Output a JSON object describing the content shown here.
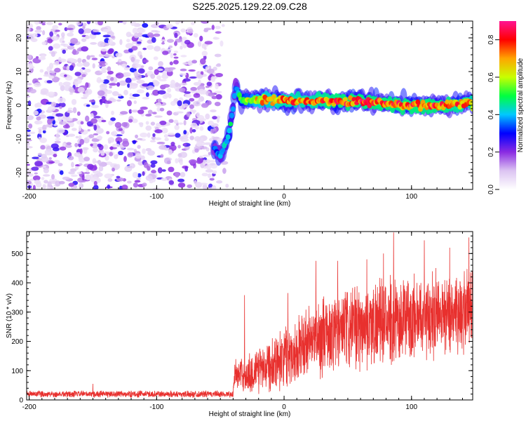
{
  "figure_title": "S225.2025.129.22.09.C28",
  "chart_data": [
    {
      "type": "heatmap",
      "xlabel": "Height of straight line (km)",
      "ylabel": "Frequency (Hz)",
      "xlim": [
        -202,
        148
      ],
      "ylim": [
        -25,
        25
      ],
      "xticks": [
        -200,
        -100,
        0,
        100
      ],
      "yticks": [
        -20,
        -10,
        0,
        10,
        20
      ],
      "colorbar": {
        "label": "Normalized spectral amplitude",
        "range": [
          0,
          0.9
        ],
        "ticks": [
          "0.0",
          "0.2",
          "0.4",
          "0.6",
          "0.8"
        ],
        "colormap": [
          "#ffffff",
          "#dcc4f2",
          "#8a2be2",
          "#0000ff",
          "#00c8ff",
          "#00ff40",
          "#c8ff00",
          "#ffa500",
          "#ff0000",
          "#ff1493"
        ]
      },
      "noise_region": {
        "x": [
          -202,
          -50
        ],
        "frequency": [
          -25,
          25
        ],
        "amplitude": [
          0.05,
          0.3
        ]
      },
      "signal_ridge": [
        {
          "x": -55,
          "frequency": -13,
          "amplitude": 0.35
        },
        {
          "x": -50,
          "frequency": -15,
          "amplitude": 0.4
        },
        {
          "x": -46,
          "frequency": -12,
          "amplitude": 0.45
        },
        {
          "x": -43,
          "frequency": -8,
          "amplitude": 0.5
        },
        {
          "x": -40,
          "frequency": 0,
          "amplitude": 0.45
        },
        {
          "x": -38,
          "frequency": 6,
          "amplitude": 0.35
        },
        {
          "x": -34,
          "frequency": 1,
          "amplitude": 0.55
        },
        {
          "x": -20,
          "frequency": 1.5,
          "amplitude": 0.75
        },
        {
          "x": 0,
          "frequency": 1.5,
          "amplitude": 0.8
        },
        {
          "x": 20,
          "frequency": 1.5,
          "amplitude": 0.8
        },
        {
          "x": 40,
          "frequency": 1,
          "amplitude": 0.85
        },
        {
          "x": 60,
          "frequency": 1,
          "amplitude": 0.85
        },
        {
          "x": 80,
          "frequency": 0.5,
          "amplitude": 0.85
        },
        {
          "x": 100,
          "frequency": 0,
          "amplitude": 0.85
        },
        {
          "x": 120,
          "frequency": 0,
          "amplitude": 0.85
        },
        {
          "x": 148,
          "frequency": 0.5,
          "amplitude": 0.8
        }
      ]
    },
    {
      "type": "line",
      "xlabel": "Height of straight line (km)",
      "ylabel": "SNR (10 * v/v)",
      "xlim": [
        -202,
        148
      ],
      "ylim": [
        0,
        575
      ],
      "xticks": [
        -200,
        -100,
        0,
        100
      ],
      "yticks": [
        0,
        100,
        200,
        300,
        400,
        500
      ],
      "series": [
        {
          "color": "#e8302e",
          "x": [
            -202,
            -180,
            -160,
            -140,
            -120,
            -100,
            -80,
            -60,
            -40,
            -38,
            -37,
            -34,
            -30,
            -25,
            -20,
            -10,
            0,
            10,
            20,
            30,
            40,
            50,
            60,
            70,
            80,
            90,
            100,
            110,
            120,
            130,
            140,
            148
          ],
          "mean": [
            20,
            20,
            20,
            20,
            20,
            20,
            20,
            20,
            20,
            120,
            80,
            90,
            80,
            90,
            110,
            130,
            150,
            170,
            200,
            215,
            230,
            240,
            250,
            260,
            265,
            275,
            280,
            290,
            295,
            300,
            305,
            310
          ],
          "spread": [
            12,
            12,
            12,
            12,
            12,
            12,
            12,
            12,
            12,
            60,
            50,
            60,
            70,
            80,
            90,
            100,
            110,
            120,
            130,
            140,
            150,
            150,
            150,
            150,
            150,
            150,
            150,
            150,
            150,
            150,
            150,
            150
          ],
          "peaks": [
            {
              "x": -150,
              "y": 55
            },
            {
              "x": -31,
              "y": 358
            },
            {
              "x": 3,
              "y": 365
            },
            {
              "x": 25,
              "y": 475
            },
            {
              "x": 42,
              "y": 475
            },
            {
              "x": 65,
              "y": 480
            },
            {
              "x": 78,
              "y": 500
            },
            {
              "x": 86,
              "y": 572
            },
            {
              "x": 110,
              "y": 545
            },
            {
              "x": 130,
              "y": 520
            },
            {
              "x": 145,
              "y": 555
            }
          ]
        }
      ]
    }
  ]
}
